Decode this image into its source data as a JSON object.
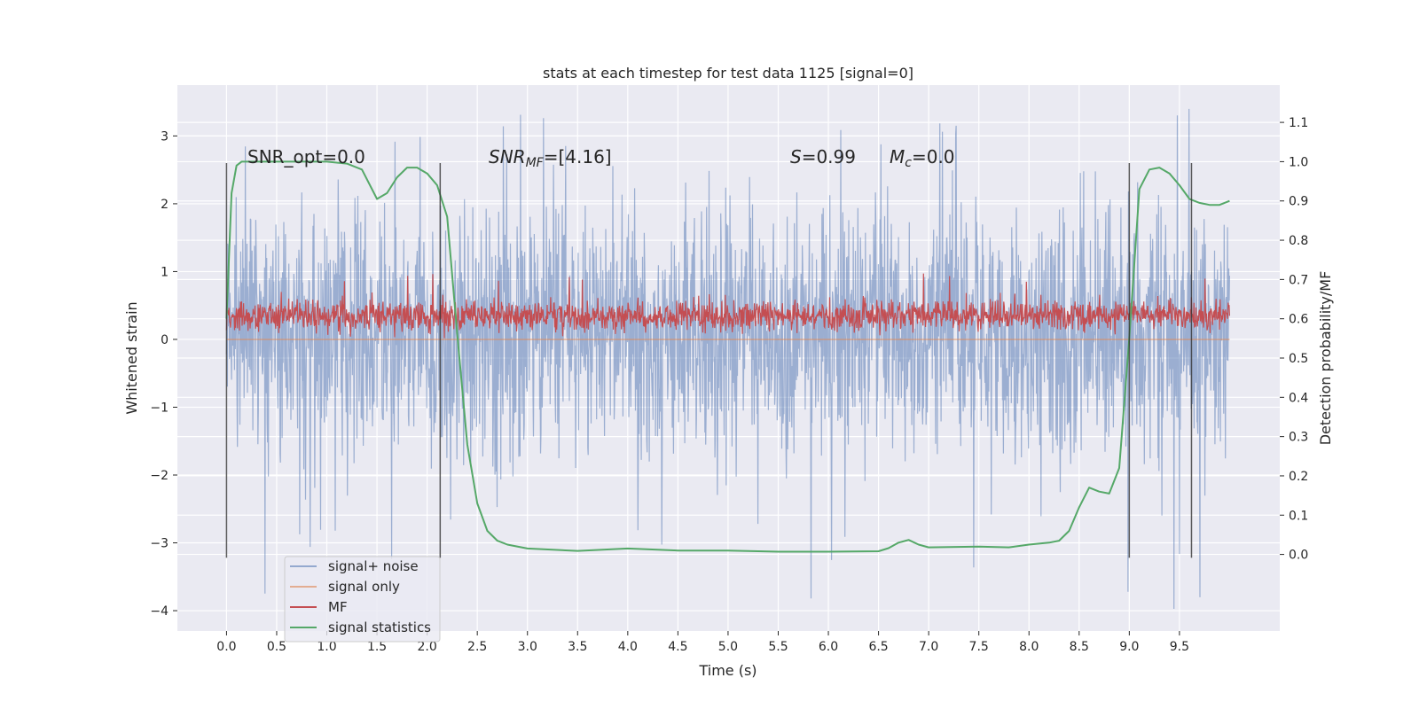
{
  "chart_data": {
    "type": "line",
    "title": "stats at each timestep for test data 1125 [signal=0]",
    "xlabel": "Time (s)",
    "ylabel": "Whitened strain",
    "y2label": "Detection probability/MF",
    "xlim": [
      -0.49,
      10.5
    ],
    "ylim": [
      -4.3,
      3.75
    ],
    "y2lim": [
      -0.195,
      1.195
    ],
    "x_ticks": [
      "0.0",
      "0.5",
      "1.0",
      "1.5",
      "2.0",
      "2.5",
      "3.0",
      "3.5",
      "4.0",
      "4.5",
      "5.0",
      "5.5",
      "6.0",
      "6.5",
      "7.0",
      "7.5",
      "8.0",
      "8.5",
      "9.0",
      "9.5"
    ],
    "y_ticks": [
      "3",
      "2",
      "1",
      "0",
      "−1",
      "−2",
      "−3",
      "−4"
    ],
    "y2_ticks": [
      "1.1",
      "1.0",
      "0.9",
      "0.8",
      "0.7",
      "0.6",
      "0.5",
      "0.4",
      "0.3",
      "0.2",
      "0.1",
      "0.0"
    ],
    "grid": true,
    "legend_position": "lower-left",
    "annotations": {
      "snr_opt": "SNR_opt=0.0",
      "snr_mf_symbol": "SNR",
      "snr_mf_sub": "MF",
      "snr_mf_value": "=[4.16]",
      "s_symbol": "S",
      "s_value": "=0.99",
      "mc_symbol": "M",
      "mc_sub": "c",
      "mc_value": "=0.0"
    },
    "vertical_lines_x": [
      0.0,
      2.13,
      9.0,
      9.62
    ],
    "series": [
      {
        "name": "signal+ noise",
        "color": "#4c72b0",
        "kind": "noise",
        "axis": "left",
        "x_range": [
          0,
          10
        ],
        "envelope_upper": [
          2.3,
          2.6,
          2.3,
          2.8,
          2.5,
          2.7,
          2.4,
          2.6,
          2.5,
          2.7,
          2.6
        ],
        "envelope_lower": [
          -2.1,
          -2.3,
          -2.4,
          -2.5,
          -2.2,
          -2.4,
          -2.3,
          -2.2,
          -2.4,
          -2.5,
          -2.4
        ],
        "peak_max": 3.4,
        "peak_min": -4.0
      },
      {
        "name": "signal only",
        "color": "#dd8452",
        "axis": "left",
        "x": [
          0,
          10
        ],
        "y": [
          0,
          0
        ]
      },
      {
        "name": "MF",
        "color": "#c44e52",
        "kind": "noise",
        "axis": "left",
        "x_range": [
          0,
          10
        ],
        "typical_range": [
          0.0,
          0.7
        ],
        "peak_max": 1.0
      },
      {
        "name": "signal statistics",
        "color": "#55a868",
        "axis": "right",
        "x": [
          0.0,
          0.05,
          0.1,
          0.15,
          0.3,
          0.6,
          1.0,
          1.2,
          1.35,
          1.5,
          1.6,
          1.7,
          1.8,
          1.9,
          2.0,
          2.1,
          2.2,
          2.3,
          2.4,
          2.5,
          2.6,
          2.7,
          2.8,
          3.0,
          3.5,
          4.0,
          4.5,
          5.0,
          5.5,
          6.0,
          6.5,
          6.6,
          6.7,
          6.8,
          6.9,
          7.0,
          7.5,
          7.8,
          8.0,
          8.2,
          8.3,
          8.4,
          8.5,
          8.6,
          8.7,
          8.8,
          8.9,
          9.0,
          9.1,
          9.2,
          9.3,
          9.4,
          9.5,
          9.6,
          9.7,
          9.8,
          9.9,
          10.0
        ],
        "y": [
          0.6,
          0.92,
          0.99,
          1.0,
          1.0,
          1.0,
          1.0,
          0.995,
          0.98,
          0.905,
          0.92,
          0.96,
          0.985,
          0.985,
          0.97,
          0.94,
          0.86,
          0.56,
          0.28,
          0.13,
          0.06,
          0.035,
          0.025,
          0.015,
          0.009,
          0.015,
          0.01,
          0.01,
          0.007,
          0.007,
          0.008,
          0.016,
          0.03,
          0.037,
          0.025,
          0.018,
          0.02,
          0.018,
          0.025,
          0.03,
          0.035,
          0.06,
          0.12,
          0.17,
          0.16,
          0.155,
          0.22,
          0.55,
          0.93,
          0.98,
          0.985,
          0.97,
          0.94,
          0.905,
          0.895,
          0.89,
          0.89,
          0.9
        ]
      }
    ]
  }
}
